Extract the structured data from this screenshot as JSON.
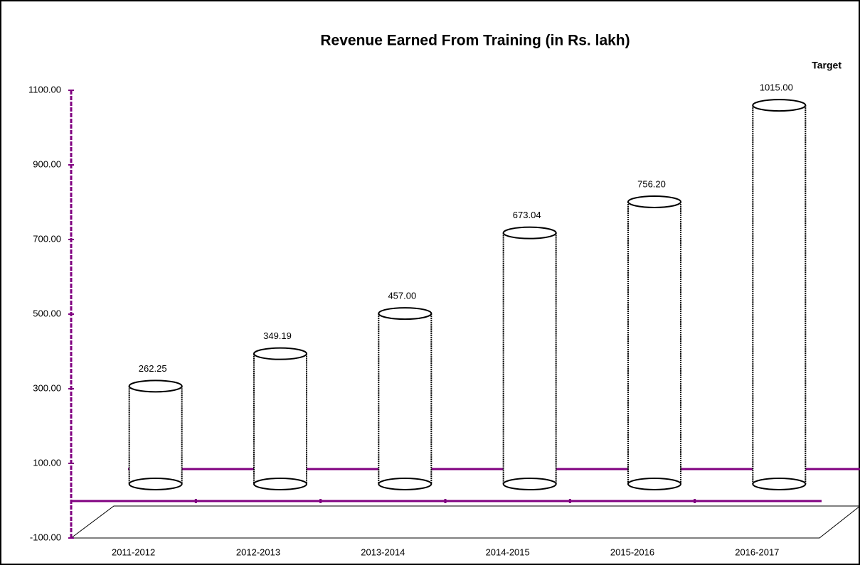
{
  "chart_data": {
    "type": "bar",
    "title": "Revenue Earned From Training (in Rs. lakh)",
    "annotation": "Target",
    "categories": [
      "2011-2012",
      "2012-2013",
      "2013-2014",
      "2014-2015",
      "2015-2016",
      "2016-2017"
    ],
    "values": [
      262.25,
      349.19,
      457,
      673.04,
      756.2,
      1015
    ],
    "value_labels": [
      "262.25",
      "349.19",
      "457.00",
      "673.04",
      "756.20",
      "1015.00"
    ],
    "color": "#ffffff",
    "ylim": [
      -100,
      1100
    ],
    "yticks": [
      {
        "value": -100,
        "label": "-100.00"
      },
      {
        "value": 100,
        "label": "100.00"
      },
      {
        "value": 300,
        "label": "300.00"
      },
      {
        "value": 500,
        "label": "500.00"
      },
      {
        "value": 700,
        "label": "700.00"
      },
      {
        "value": 900,
        "label": "900.00"
      },
      {
        "value": 1100,
        "label": "1100.00"
      }
    ]
  }
}
